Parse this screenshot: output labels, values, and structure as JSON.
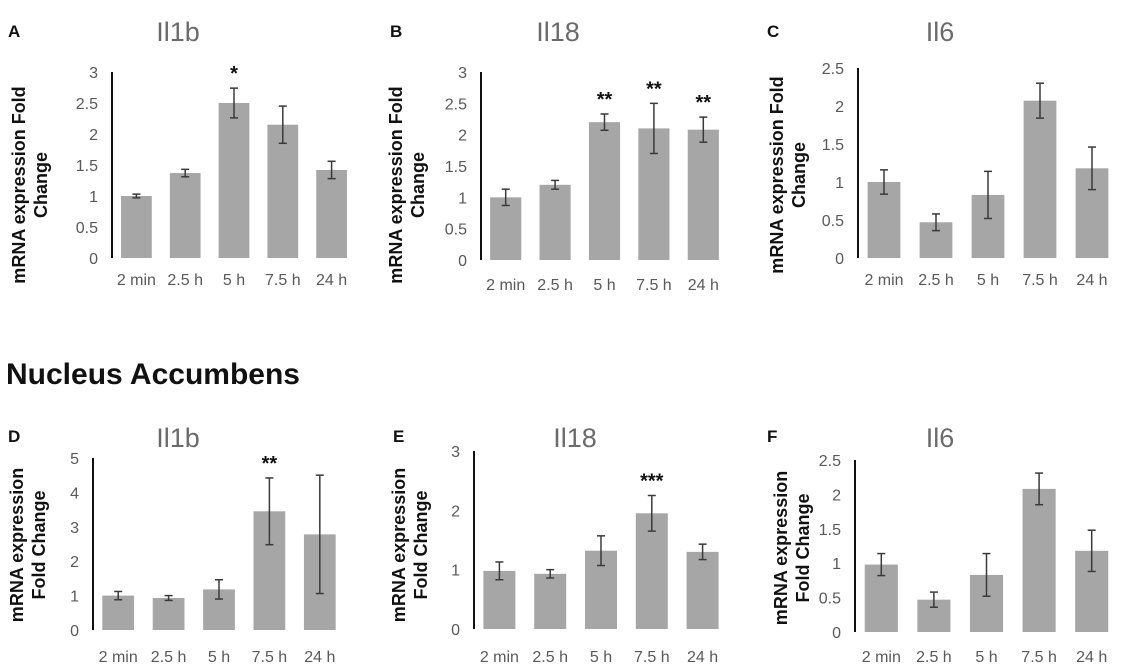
{
  "section_title": "Nucleus Accumbens",
  "chart_data": [
    {
      "panel": "A",
      "type": "bar",
      "title": "Il1b",
      "ylabel": [
        "mRNA expression Fold",
        "Change"
      ],
      "categories": [
        "2 min",
        "2.5 h",
        "5 h",
        "7.5 h",
        "24 h"
      ],
      "values": [
        1.0,
        1.37,
        2.5,
        2.15,
        1.42
      ],
      "errors": [
        0.03,
        0.06,
        0.24,
        0.3,
        0.14
      ],
      "significance": [
        "",
        "",
        "*",
        "",
        ""
      ],
      "ylim": [
        0,
        3
      ],
      "yticks": [
        "0",
        "0.5",
        "1",
        "1.5",
        "2",
        "2.5",
        "3"
      ],
      "bar_color": "#a6a6a6"
    },
    {
      "panel": "B",
      "type": "bar",
      "title": "Il18",
      "ylabel": [
        "mRNA expression Fold",
        "Change"
      ],
      "categories": [
        "2 min",
        "2.5 h",
        "5 h",
        "7.5 h",
        "24 h"
      ],
      "values": [
        1.0,
        1.2,
        2.2,
        2.1,
        2.08
      ],
      "errors": [
        0.13,
        0.07,
        0.13,
        0.4,
        0.2
      ],
      "significance": [
        "",
        "",
        "**",
        "**",
        "**"
      ],
      "ylim": [
        0,
        3
      ],
      "yticks": [
        "0",
        "0.5",
        "1",
        "1.5",
        "2",
        "2.5",
        "3"
      ],
      "bar_color": "#a6a6a6"
    },
    {
      "panel": "C",
      "type": "bar",
      "title": "Il6",
      "ylabel": [
        "mRNA expression Fold",
        "Change"
      ],
      "categories": [
        "2 min",
        "2.5 h",
        "5 h",
        "7.5 h",
        "24 h"
      ],
      "values": [
        1.0,
        0.47,
        0.83,
        2.07,
        1.18
      ],
      "errors": [
        0.16,
        0.11,
        0.31,
        0.23,
        0.28
      ],
      "significance": [
        "",
        "",
        "",
        "",
        ""
      ],
      "ylim": [
        0,
        2.5
      ],
      "yticks": [
        "0",
        "0.5",
        "1",
        "1.5",
        "2",
        "2.5"
      ],
      "bar_color": "#a6a6a6"
    },
    {
      "panel": "D",
      "type": "bar",
      "title": "Il1b",
      "ylabel": [
        "mRNA expression",
        "Fold Change"
      ],
      "categories": [
        "2 min",
        "2.5 h",
        "5 h",
        "7.5 h",
        "24 h"
      ],
      "values": [
        1.0,
        0.93,
        1.18,
        3.45,
        2.78
      ],
      "errors": [
        0.12,
        0.07,
        0.28,
        0.97,
        1.72
      ],
      "significance": [
        "",
        "",
        "",
        "**",
        ""
      ],
      "ylim": [
        0,
        5
      ],
      "yticks": [
        "0",
        "1",
        "2",
        "3",
        "4",
        "5"
      ],
      "bar_color": "#a6a6a6"
    },
    {
      "panel": "E",
      "type": "bar",
      "title": "Il18",
      "ylabel": [
        "mRNA expression",
        "Fold Change"
      ],
      "categories": [
        "2 min",
        "2.5 h",
        "5 h",
        "7.5 h",
        "24 h"
      ],
      "values": [
        0.98,
        0.93,
        1.32,
        1.95,
        1.3
      ],
      "errors": [
        0.15,
        0.07,
        0.25,
        0.3,
        0.13
      ],
      "significance": [
        "",
        "",
        "",
        "***",
        ""
      ],
      "ylim": [
        0,
        3
      ],
      "yticks": [
        "0",
        "1",
        "2",
        "3"
      ],
      "bar_color": "#a6a6a6"
    },
    {
      "panel": "F",
      "type": "bar",
      "title": "Il6",
      "ylabel": [
        "mRNA expression",
        "Fold Change"
      ],
      "categories": [
        "2 min",
        "2.5 h",
        "5 h",
        "7.5 h",
        "24 h"
      ],
      "values": [
        0.98,
        0.47,
        0.83,
        2.08,
        1.18
      ],
      "errors": [
        0.16,
        0.11,
        0.31,
        0.23,
        0.3
      ],
      "significance": [
        "",
        "",
        "",
        "",
        ""
      ],
      "ylim": [
        0,
        2.5
      ],
      "yticks": [
        "0",
        "0.5",
        "1",
        "1.5",
        "2",
        "2.5"
      ],
      "bar_color": "#a6a6a6"
    }
  ]
}
